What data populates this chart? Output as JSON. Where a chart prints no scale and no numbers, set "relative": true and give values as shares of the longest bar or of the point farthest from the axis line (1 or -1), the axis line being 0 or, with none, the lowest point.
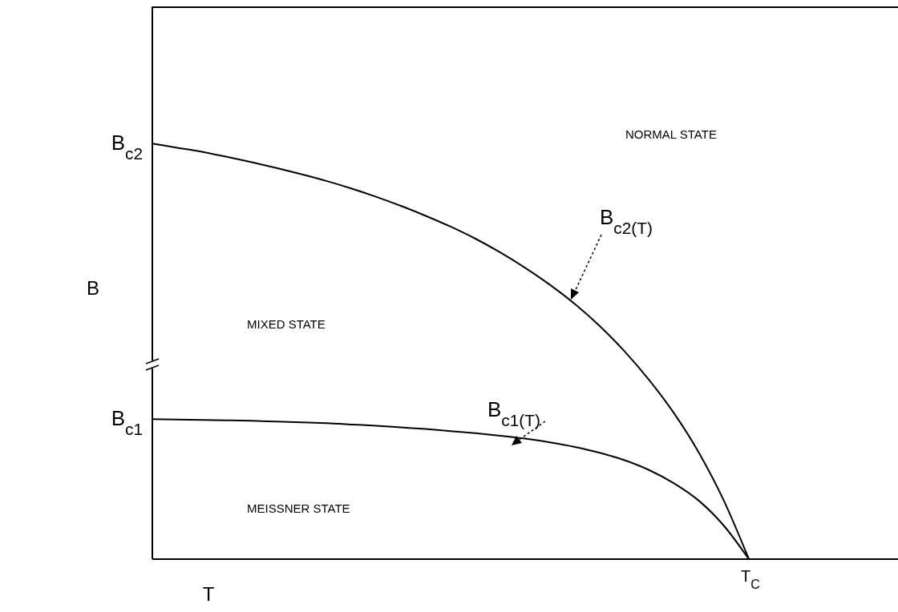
{
  "chart_data": {
    "type": "line",
    "relative": true,
    "xlabel": "T",
    "ylabel": "B",
    "marker": "none",
    "categories": [
      null,
      null,
      null,
      null,
      null,
      null,
      null,
      null,
      null,
      null,
      null,
      null,
      null,
      null,
      null,
      null,
      null,
      null,
      null,
      null,
      null,
      null,
      null,
      null,
      null,
      null,
      null,
      null,
      null,
      null,
      null
    ],
    "series": [
      {
        "color": "#000000",
        "values": [
          1.0,
          0.99,
          0.98,
          0.968,
          0.955,
          0.941,
          0.926,
          0.91,
          0.892,
          0.872,
          0.85,
          0.826,
          0.8,
          0.771,
          0.738,
          0.701,
          0.66,
          0.614,
          0.561,
          0.5,
          0.43,
          0.35,
          0.255,
          0.14,
          0,
          null,
          null,
          null,
          null,
          null,
          null
        ]
      },
      {
        "color": "#000000",
        "values": [
          0.337,
          0.336,
          0.335,
          0.334,
          0.333,
          0.331,
          0.329,
          0.327,
          0.324,
          0.321,
          0.317,
          0.313,
          0.308,
          0.303,
          0.297,
          0.29,
          0.281,
          0.27,
          0.256,
          0.238,
          0.214,
          0.182,
          0.14,
          0.08,
          0,
          null,
          null,
          null,
          null,
          null,
          null
        ]
      }
    ],
    "annotations": [
      "B$_{c2}$",
      "B$_{c1}$",
      "T$_{C}$",
      "NORMAL STATE",
      "MIXED STATE",
      "MEISSNER STATE",
      "B$_{c2(T)}$",
      "B$_{c1(T)}$"
    ]
  }
}
